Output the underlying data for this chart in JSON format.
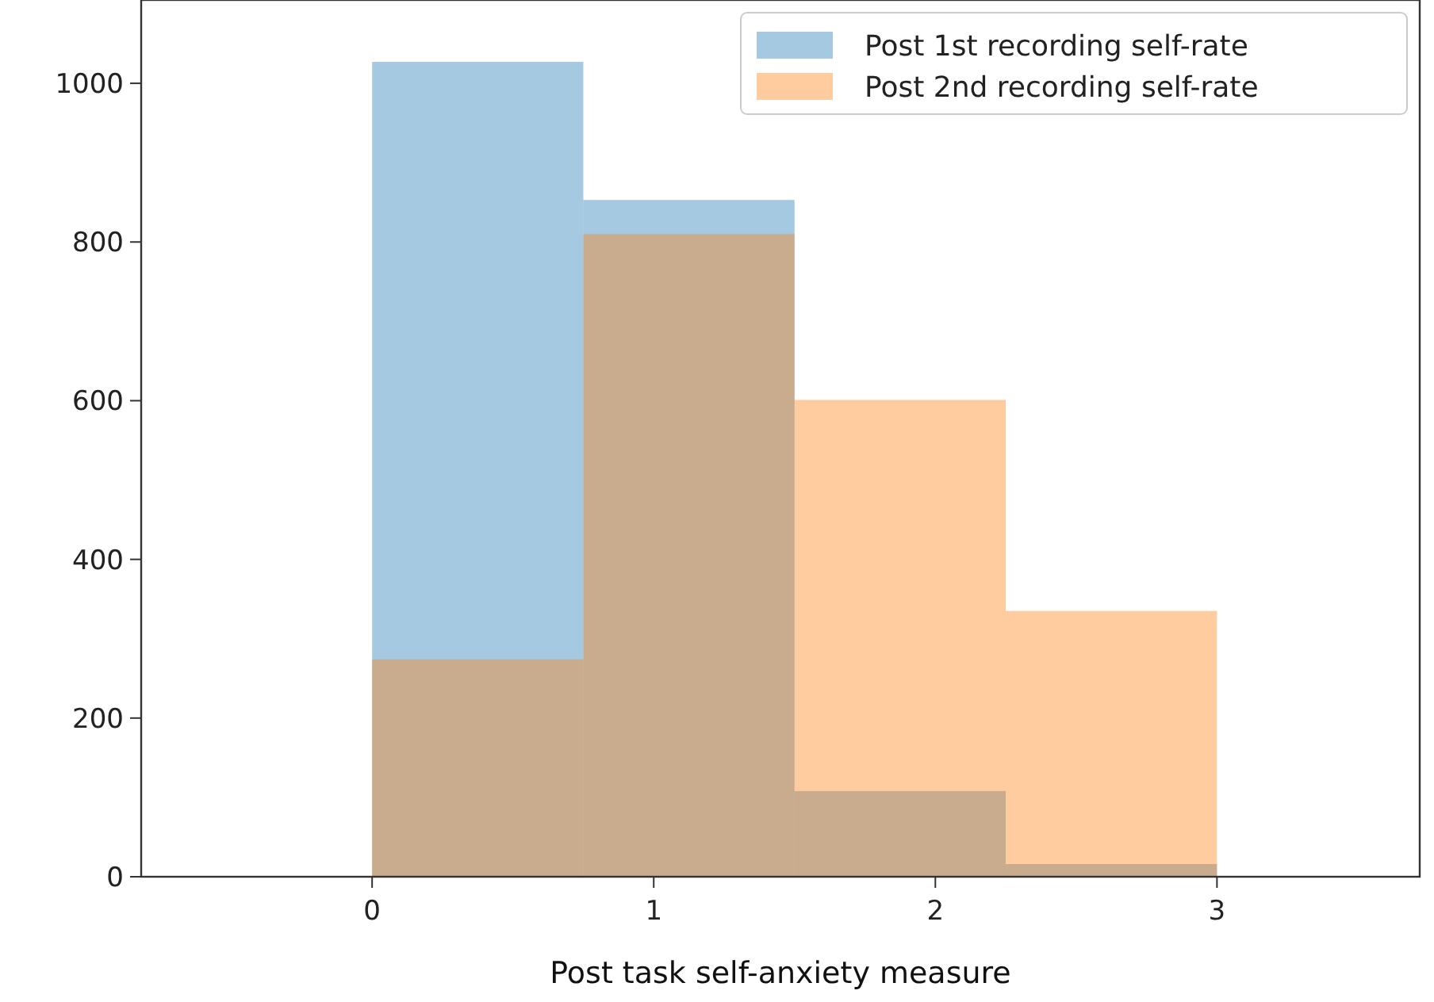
{
  "chart_data": {
    "type": "histogram",
    "xlabel": "Post task self-anxiety measure",
    "bins": [
      0,
      0.75,
      1.5,
      2.25,
      3
    ],
    "series": [
      {
        "name": "Post 1st recording self-rate",
        "color": "#1f77b4",
        "values": [
          1027,
          853,
          108,
          16
        ]
      },
      {
        "name": "Post 2nd recording self-rate",
        "color": "#ff7f0e",
        "values": [
          274,
          810,
          601,
          335
        ]
      }
    ],
    "xlim": [
      -0.82,
      3.72
    ],
    "ylim": [
      0,
      1105
    ],
    "xticks": [
      0,
      1,
      2,
      3
    ],
    "yticks": [
      0,
      200,
      400,
      600,
      800,
      1000
    ],
    "legend": "top right",
    "grid": false
  }
}
